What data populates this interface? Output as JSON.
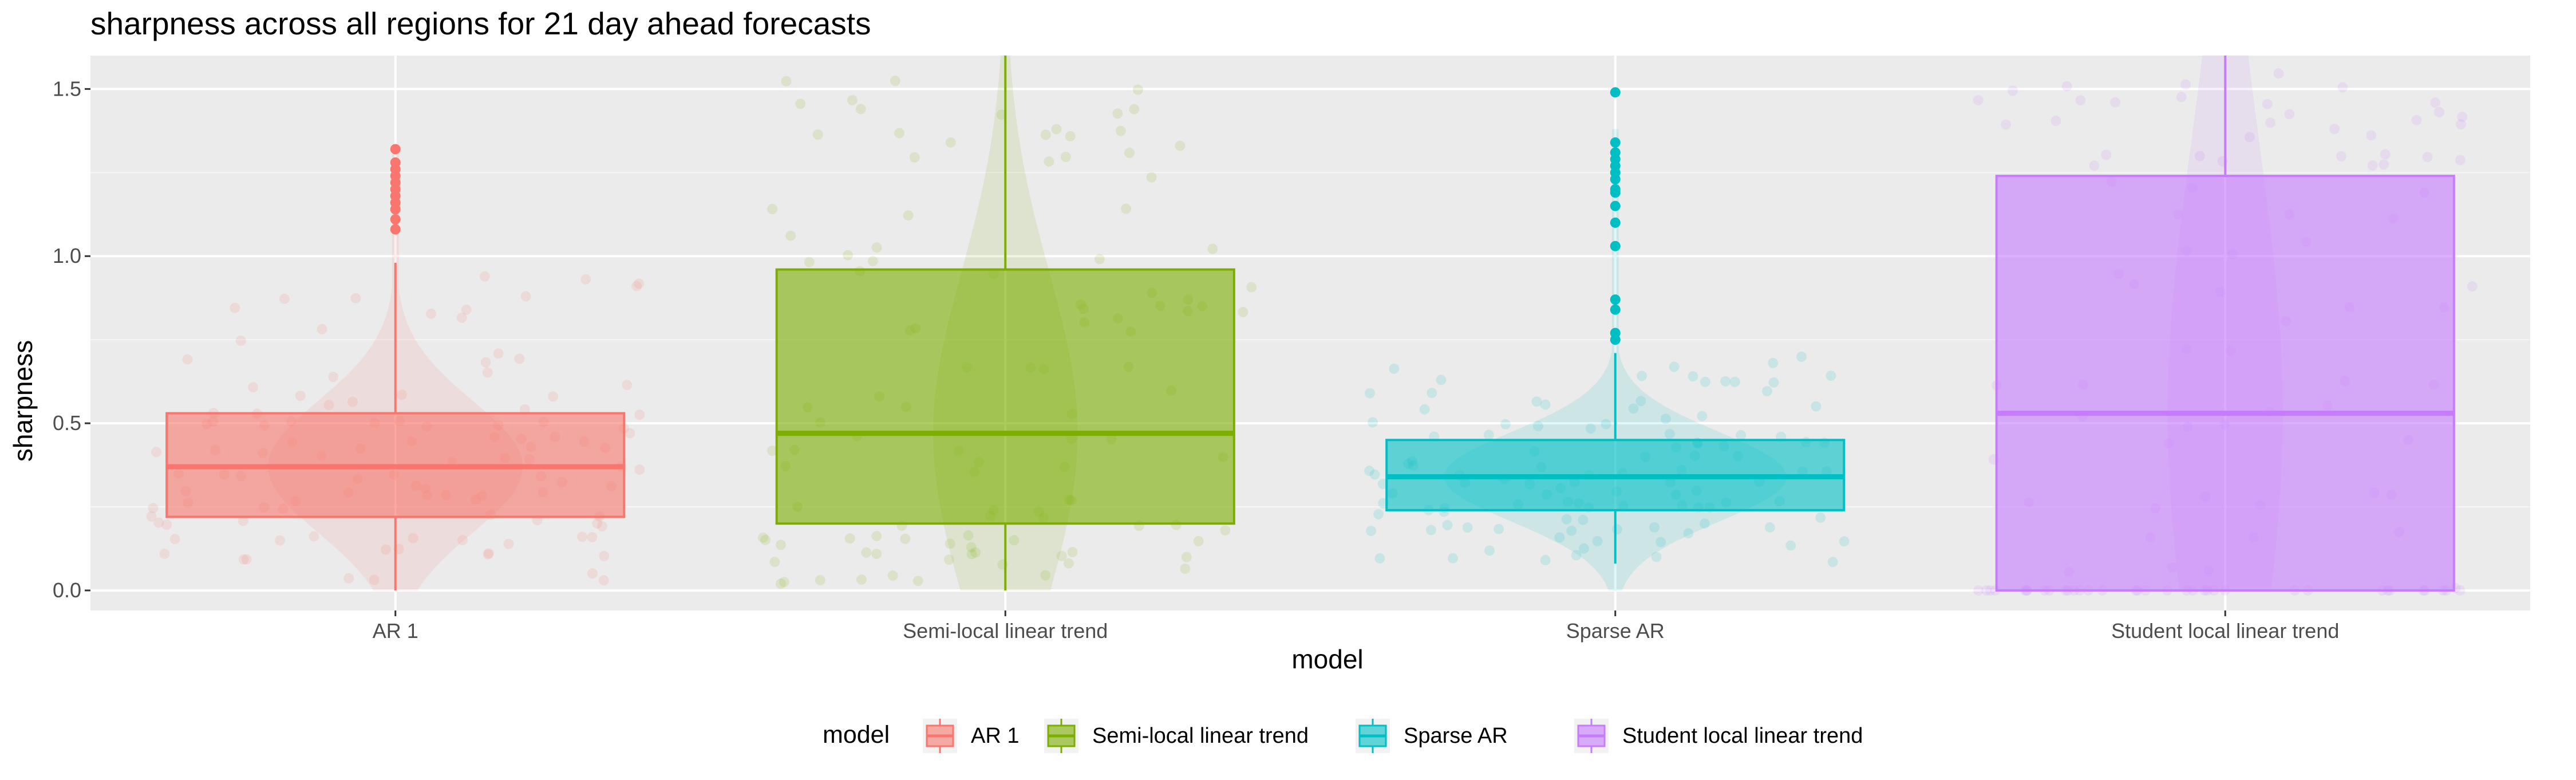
{
  "chart_data": {
    "type": "boxplot",
    "title": "sharpness across all regions for 21 day ahead forecasts",
    "xlabel": "model",
    "ylabel": "sharpness",
    "ylim": [
      -0.06,
      1.6
    ],
    "yticks": [
      0.0,
      0.5,
      1.0,
      1.5
    ],
    "ytick_labels": [
      "0.0",
      "0.5",
      "1.0",
      "1.5"
    ],
    "grid": true,
    "legend_title": "model",
    "legend_position": "bottom",
    "categories": [
      "AR 1",
      "Semi-local linear trend",
      "Sparse AR",
      "Student local linear trend"
    ],
    "series": [
      {
        "name": "AR 1",
        "color": "#F8766D",
        "box": {
          "min": 0.0,
          "q1": 0.22,
          "median": 0.37,
          "q3": 0.53,
          "max": 0.98
        },
        "outliers": [
          1.08,
          1.11,
          1.14,
          1.16,
          1.18,
          1.2,
          1.22,
          1.24,
          1.26,
          1.28,
          1.32
        ],
        "violin_top": 1.33
      },
      {
        "name": "Semi-local linear trend",
        "color": "#7CAE00",
        "box": {
          "min": 0.0,
          "q1": 0.2,
          "median": 0.47,
          "q3": 0.96,
          "max": 1.6
        },
        "outliers": [],
        "violin_top": 1.6
      },
      {
        "name": "Sparse AR",
        "color": "#00BFC4",
        "box": {
          "min": 0.08,
          "q1": 0.24,
          "median": 0.34,
          "q3": 0.45,
          "max": 0.71
        },
        "outliers": [
          0.75,
          0.77,
          0.84,
          0.87,
          1.03,
          1.1,
          1.15,
          1.19,
          1.2,
          1.23,
          1.25,
          1.27,
          1.29,
          1.31,
          1.34,
          1.49
        ],
        "violin_top": 1.38
      },
      {
        "name": "Student local linear trend",
        "color": "#C77CFF",
        "box": {
          "min": 0.0,
          "q1": 0.0,
          "median": 0.53,
          "q3": 1.24,
          "max": 1.6
        },
        "outliers": [],
        "violin_top": 1.6
      }
    ]
  }
}
